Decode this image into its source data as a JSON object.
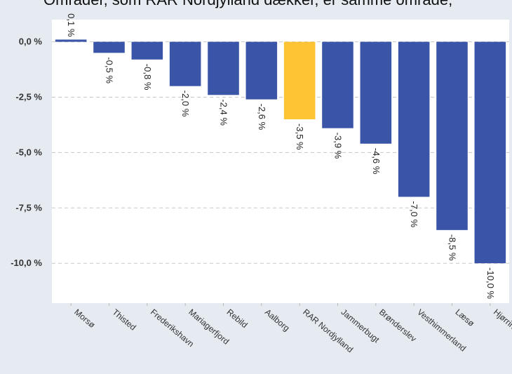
{
  "caption_text": "Områder, som RAR Nordjylland dækker, er samme område,",
  "chart_data": {
    "type": "bar",
    "categories": [
      "Morsø",
      "Thisted",
      "Frederikshavn",
      "Mariagerfjord",
      "Rebild",
      "Aalborg",
      "RAR Nordjylland",
      "Jammerbugt",
      "Brønderslev",
      "Vesthimmerland",
      "Læsø",
      "Hjørring"
    ],
    "values": [
      0.1,
      -0.5,
      -0.8,
      -2.0,
      -2.4,
      -2.6,
      -3.5,
      -3.9,
      -4.6,
      -7.0,
      -8.5,
      -10.0
    ],
    "value_labels": [
      "0,1 %",
      "-0,5 %",
      "-0,8 %",
      "-2,0 %",
      "-2,4 %",
      "-2,6 %",
      "-3,5 %",
      "-3,9 %",
      "-4,6 %",
      "-7,0 %",
      "-8,5 %",
      "-10,0 %"
    ],
    "highlight_index": 6,
    "yticks": [
      0.0,
      -2.5,
      -5.0,
      -7.5,
      -10.0
    ],
    "ytick_labels": [
      "0,0 %",
      "-2,5 %",
      "-5,0 %",
      "-7,5 %",
      "-10,0 %"
    ],
    "ylim": [
      -11.8,
      1.0
    ],
    "grid": true,
    "legend": "none",
    "colors": {
      "bar": "#3a54a8",
      "highlight": "#fdc434",
      "plot_bg": "#ffffff",
      "page_bg": "#e6ebf2",
      "grid": "#c8c8c8"
    }
  }
}
